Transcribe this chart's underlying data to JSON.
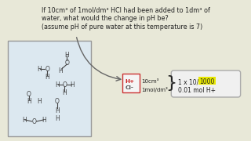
{
  "bg_color": "#e8e8d8",
  "text_line1": "If 10cm³ of 1mol/dm³ HCl had been added to 1dm³ of",
  "text_line2": "water, what would the change in pH be?",
  "text_line3": "(assume pH of pure water at this temperature is 7)",
  "arrow_color": "#666666",
  "mol_color": "#444444",
  "beaker_face": "#dce8f0",
  "beaker_edge": "#999999",
  "hcl_border": "#cc3333",
  "hcl_face": "#f5f5f5",
  "result_face": "#f0f0f0",
  "result_edge": "#aaaaaa",
  "highlight_color": "#e8e800",
  "font_color": "#222222"
}
